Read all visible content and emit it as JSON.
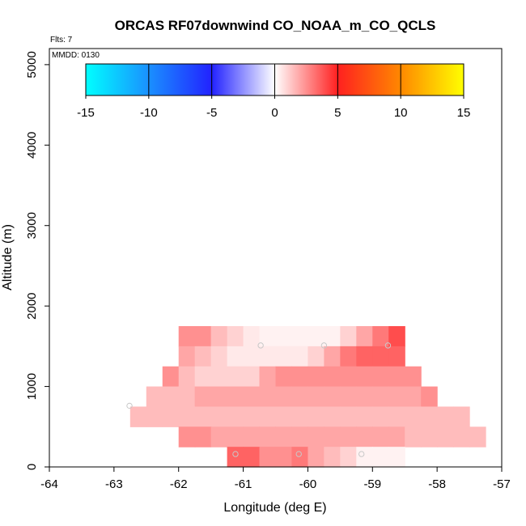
{
  "chart_data": {
    "type": "heatmap",
    "title": "ORCAS RF07downwind CO_NOAA_m_CO_QCLS",
    "flights_label": "Flts: 7",
    "date_label": "MMDD: 0130",
    "xlabel": "Longitude (deg E)",
    "ylabel": "Altitude (m)",
    "xlim": [
      -64,
      -57
    ],
    "ylim": [
      0,
      5200
    ],
    "x_ticks": [
      -64,
      -63,
      -62,
      -61,
      -60,
      -59,
      -58,
      -57
    ],
    "y_ticks": [
      0,
      1000,
      2000,
      3000,
      4000,
      5000
    ],
    "colorbar": {
      "range": [
        -15,
        15
      ],
      "ticks": [
        -15,
        -10,
        -5,
        0,
        5,
        10,
        15
      ],
      "stops": [
        {
          "v": -15,
          "color": "#00ffff"
        },
        {
          "v": -10,
          "color": "#1a90ff"
        },
        {
          "v": -5,
          "color": "#2222ff"
        },
        {
          "v": 0,
          "color": "#ffffff"
        },
        {
          "v": 5,
          "color": "#ff2020"
        },
        {
          "v": 10,
          "color": "#ff8800"
        },
        {
          "v": 15,
          "color": "#ffff00"
        }
      ]
    },
    "cell": {
      "dlon": 0.25,
      "dalt": 250
    },
    "rows": [
      {
        "alt": 1500,
        "lon0": -62.0,
        "values": [
          2.5,
          2.5,
          1.5,
          1.0,
          0.5,
          0.3,
          0.3,
          0.3,
          0.3,
          0.3,
          1.0,
          2.0,
          3.0,
          4.0
        ]
      },
      {
        "alt": 1250,
        "lon0": -62.0,
        "values": [
          2.0,
          1.5,
          1.0,
          0.5,
          0.5,
          0.5,
          0.5,
          0.5,
          1.0,
          2.0,
          3.0,
          3.5,
          3.5,
          3.5
        ]
      },
      {
        "alt": 1000,
        "lon0": -62.25,
        "values": [
          2.5,
          1.5,
          1.0,
          1.0,
          1.0,
          1.0,
          2.0,
          2.5,
          2.5,
          2.5,
          2.5,
          2.5,
          2.5,
          2.5,
          2.5,
          2.5
        ]
      },
      {
        "alt": 750,
        "lon0": -62.5,
        "values": [
          1.5,
          1.5,
          1.5,
          2.0,
          2.0,
          2.0,
          2.0,
          2.0,
          2.0,
          2.0,
          2.0,
          2.0,
          2.0,
          2.0,
          2.0,
          2.0,
          2.0,
          2.5
        ]
      },
      {
        "alt": 500,
        "lon0": -62.75,
        "values": [
          1.5,
          1.5,
          1.5,
          1.5,
          1.5,
          1.5,
          1.5,
          1.5,
          1.5,
          1.5,
          1.5,
          1.5,
          1.5,
          1.5,
          1.5,
          1.5,
          1.5,
          1.5,
          1.5,
          1.5,
          1.5
        ]
      },
      {
        "alt": 250,
        "lon0": -62.0,
        "values": [
          2.5,
          2.5,
          2.0,
          2.0,
          2.0,
          2.0,
          2.0,
          2.0,
          2.0,
          2.0,
          2.0,
          2.0,
          2.0,
          2.0,
          1.5,
          1.5,
          1.5,
          1.5,
          1.5
        ]
      },
      {
        "alt": 0,
        "lon0": -61.25,
        "values": [
          3.5,
          3.5,
          2.5,
          2.5,
          3.0,
          2.0,
          1.5,
          1.0,
          0.3,
          0.3,
          0.3
        ]
      }
    ],
    "points": [
      {
        "lon": -61.12,
        "alt": 160
      },
      {
        "lon": -60.73,
        "alt": 1510
      },
      {
        "lon": -60.14,
        "alt": 160
      },
      {
        "lon": -59.75,
        "alt": 1510
      },
      {
        "lon": -59.17,
        "alt": 160
      },
      {
        "lon": -58.76,
        "alt": 1510
      },
      {
        "lon": -62.76,
        "alt": 760
      }
    ]
  }
}
